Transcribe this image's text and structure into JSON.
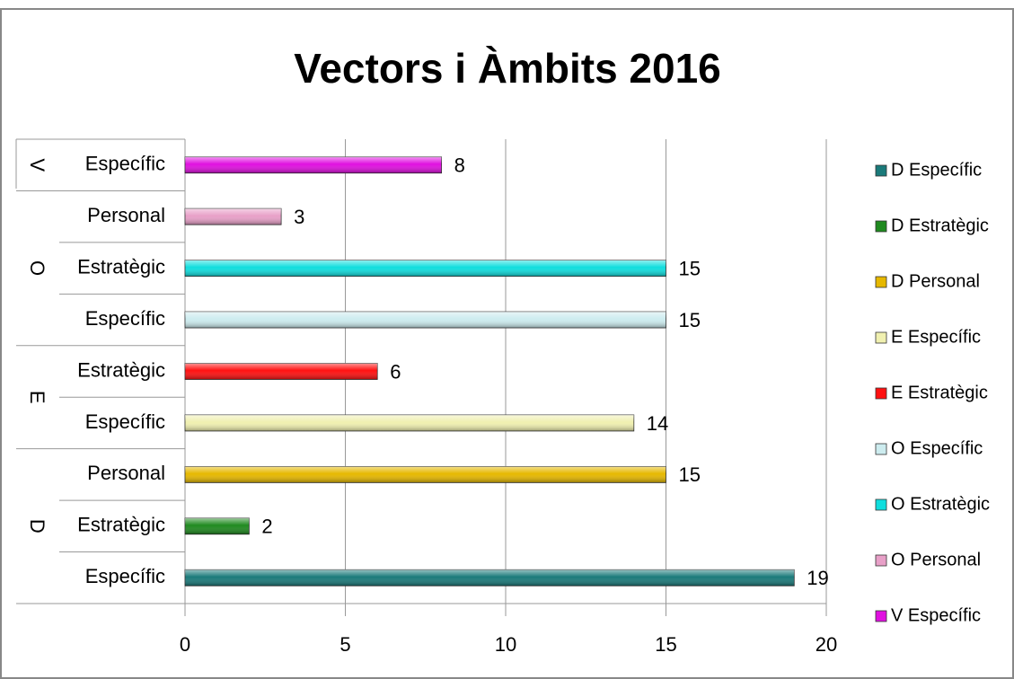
{
  "chart_data": {
    "type": "bar",
    "orientation": "horizontal",
    "title": "Vectors i Àmbits 2016",
    "groups": [
      "D",
      "D",
      "D",
      "E",
      "E",
      "O",
      "O",
      "O",
      "V"
    ],
    "categories": [
      "Específic",
      "Estratègic",
      "Personal",
      "Específic",
      "Estratègic",
      "Específic",
      "Estratègic",
      "Personal",
      "Específic"
    ],
    "values": [
      19,
      2,
      15,
      14,
      6,
      15,
      15,
      3,
      8
    ],
    "legend": [
      "D Específic",
      "D Estratègic",
      "D Personal",
      "E Específic",
      "E Estratègic",
      "O Específic",
      "O Estratègic",
      "O Personal",
      "V Específic"
    ],
    "colors": [
      "#1a7a7a",
      "#1f8a1f",
      "#e6b800",
      "#f0f0b0",
      "#ff1010",
      "#cdecef",
      "#10dede",
      "#e8a0c8",
      "#e010e0"
    ],
    "xlim": [
      0,
      20
    ],
    "xticks": [
      0,
      5,
      10,
      15,
      20
    ],
    "grid": true
  }
}
